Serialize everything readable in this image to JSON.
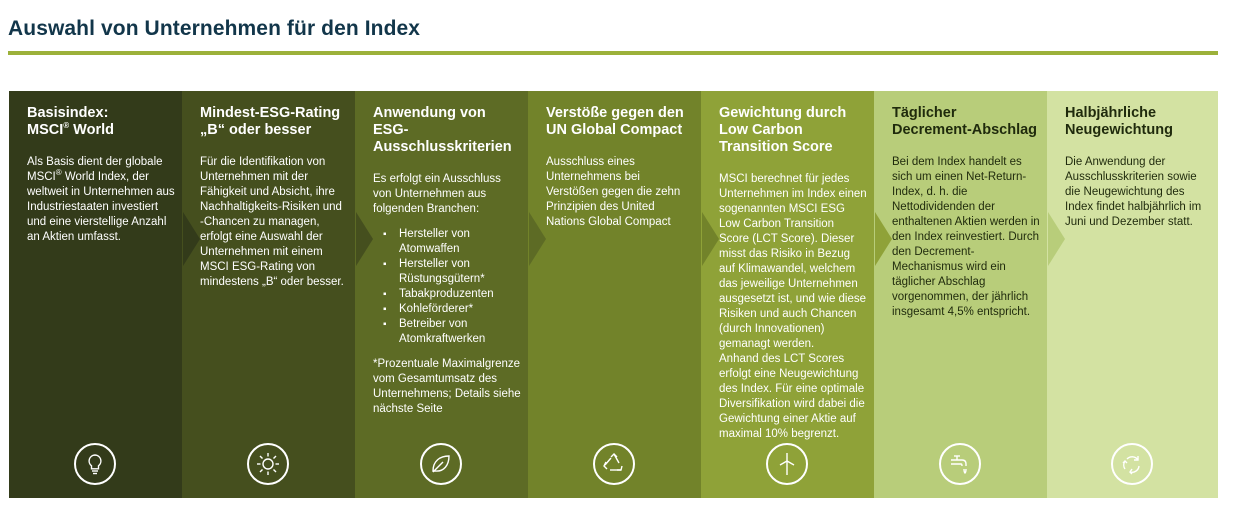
{
  "header": {
    "title": "Auswahl von Unternehmen für den Index"
  },
  "colors": {
    "rule": "#9cb13a",
    "panels": [
      "#333b1a",
      "#454f1e",
      "#5d6b25",
      "#72832a",
      "#8fa238",
      "#b8cd7a",
      "#d3e2a2"
    ],
    "text_dark": "#1f2a0c",
    "text_light": "#ffffff"
  },
  "panels": [
    {
      "title_line1": "Basisindex:",
      "title_line2_pre": "MSCI",
      "title_line2_sup": "®",
      "title_line2_post": " World",
      "body_pre": "Als Basis dient der globale MSCI",
      "body_sup": "®",
      "body_post": " World Index, der weltweit in Unternehmen aus Industriestaaten investiert und eine vierstellige Anzahl an Aktien umfasst.",
      "icon": "lightbulb-icon"
    },
    {
      "title": "Mindest-ESG-Rating „B“ oder besser",
      "body": "Für die Identifikation von Unternehmen mit der Fähigkeit und Absicht, ihre Nachhaltigkeits-Risiken und -Chancen zu managen, erfolgt eine Auswahl der Unternehmen mit einem MSCI ESG-Rating von mindestens „B“ oder besser.",
      "icon": "sun-icon"
    },
    {
      "title": "Anwendung von ESG-Ausschlusskriterien",
      "body": "Es erfolgt ein Ausschluss von Unternehmen aus folgenden Branchen:",
      "bullets": [
        "Hersteller von Atomwaffen",
        "Hersteller von Rüstungsgütern*",
        "Tabakproduzenten",
        "Kohleförderer*",
        "Betreiber von Atomkraftwerken"
      ],
      "note": "*Prozentuale Maximalgrenze vom Gesamtumsatz des Unternehmens; Details siehe nächste Seite",
      "icon": "leaf-icon"
    },
    {
      "title": "Verstöße gegen den UN Global Compact",
      "body": "Ausschluss eines Unternehmens bei Verstößen gegen die zehn Prinzipien des United Nations Global Compact",
      "icon": "recycle-icon"
    },
    {
      "title": "Gewichtung durch Low Carbon Transition Score",
      "body": "MSCI berechnet für jedes Unternehmen im Index einen sogenannten MSCI ESG Low Carbon Transition Score (LCT Score). Dieser misst das Risiko in Bezug auf Klimawandel, welchem das jeweilige Unternehmen ausgesetzt ist, und wie diese Risiken und auch Chancen (durch Innovationen) gemanagt werden.",
      "body2": "Anhand des LCT Scores erfolgt eine Neugewichtung des Index. Für eine optimale Diversifikation wird dabei die Gewichtung einer Aktie auf maximal 10% begrenzt.",
      "icon": "wind-turbine-icon"
    },
    {
      "title": "Täglicher Decrement-Abschlag",
      "body": "Bei dem Index handelt es sich um einen Net-Return-Index, d. h. die Nettodividenden der enthaltenen Aktien werden in den Index reinvestiert. Durch den Decrement-Mechanismus wird ein täglicher Abschlag vorgenommen, der jährlich insgesamt 4,5% entspricht.",
      "icon": "water-tap-icon"
    },
    {
      "title": "Halbjährliche Neugewichtung",
      "body": "Die Anwendung der Ausschlusskriterien sowie die Neugewichtung des Index findet halbjährlich im Juni und Dezember statt.",
      "icon": "cycle-arrows-icon"
    }
  ]
}
